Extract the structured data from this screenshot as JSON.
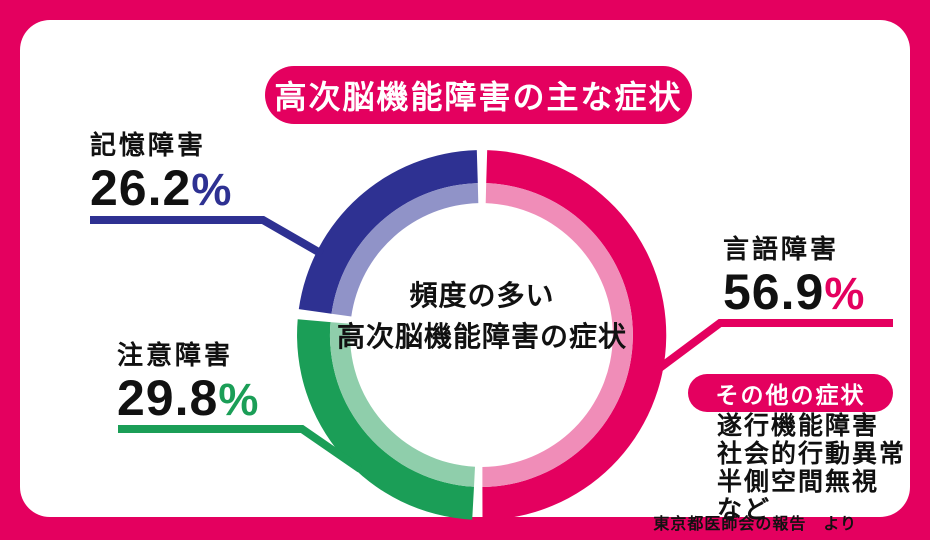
{
  "page": {
    "frame_color": "#e4005f",
    "card_color": "#ffffff",
    "text_color": "#111111"
  },
  "title": "高次脳機能障害の主な症状",
  "chart_data": {
    "type": "pie",
    "variant": "double-ring-donut",
    "title": "高次脳機能障害の主な症状",
    "center_label_lines": [
      "頻度の多い",
      "高次脳機能障害の症状"
    ],
    "angle_rule": "arc angle = value / sum(values) * 360, clockwise from 12 o'clock",
    "start_angle_deg": 0,
    "gap_deg": 3.2,
    "segments": [
      {
        "key": "language",
        "label": "言語障害",
        "value": 56.9,
        "unit": "%",
        "color": "#e4005f",
        "inner_color": "#f08db8"
      },
      {
        "key": "attention",
        "label": "注意障害",
        "value": 29.8,
        "unit": "%",
        "color": "#1b9e57",
        "inner_color": "#8fceab"
      },
      {
        "key": "memory",
        "label": "記憶障害",
        "value": 26.2,
        "unit": "%",
        "color": "#2e3192",
        "inner_color": "#9093c8"
      }
    ]
  },
  "other_symptoms": {
    "header": "その他の症状",
    "items": [
      "遂行機能障害",
      "社会的行動異常",
      "半側空間無視 など"
    ]
  },
  "source": "東京都医師会の報告　より"
}
